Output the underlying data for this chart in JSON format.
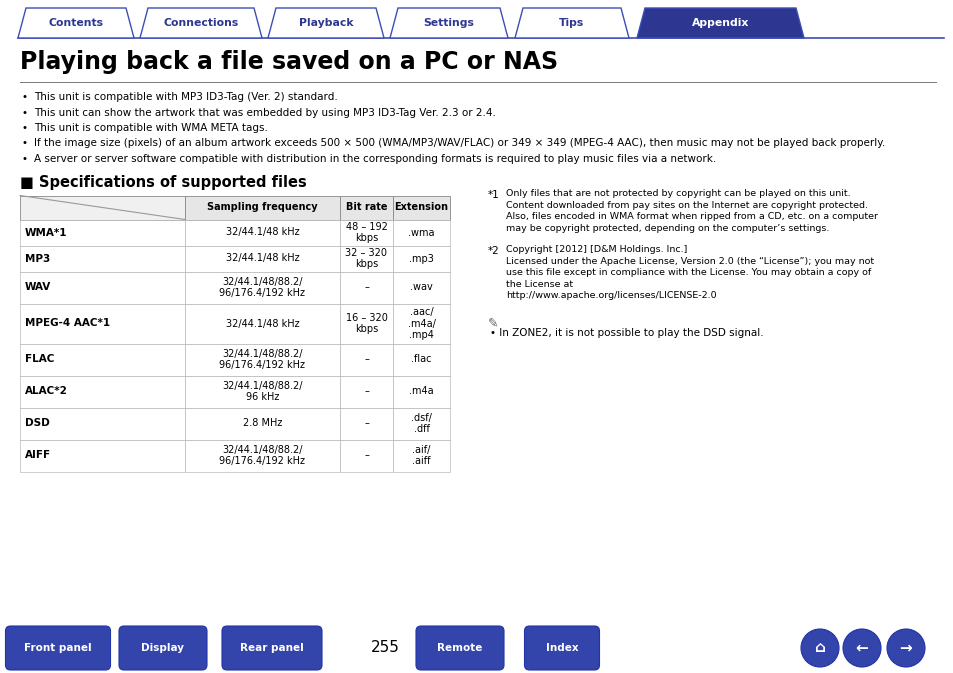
{
  "bg_color": "#ffffff",
  "title": "Playing back a file saved on a PC or NAS",
  "nav_tabs": [
    "Contents",
    "Connections",
    "Playback",
    "Settings",
    "Tips",
    "Appendix"
  ],
  "nav_active": 5,
  "nav_color_inactive": "#ffffff",
  "nav_color_active": "#2d3791",
  "nav_text_color_inactive": "#2d3791",
  "nav_text_color_active": "#ffffff",
  "nav_border_color": "#3d4db7",
  "bullets": [
    "This unit is compatible with MP3 ID3-Tag (Ver. 2) standard.",
    "This unit can show the artwork that was embedded by using MP3 ID3-Tag Ver. 2.3 or 2.4.",
    "This unit is compatible with WMA META tags.",
    "If the image size (pixels) of an album artwork exceeds 500 × 500 (WMA/MP3/WAV/FLAC) or 349 × 349 (MPEG-4 AAC), then music may not be played back properly.",
    "A server or server software compatible with distribution in the corresponding formats is required to play music files via a network."
  ],
  "section_title": "■ Specifications of supported files",
  "table_headers": [
    "",
    "Sampling frequency",
    "Bit rate",
    "Extension"
  ],
  "table_rows": [
    [
      "WMA*1",
      "32/44.1/48 kHz",
      "48 – 192\nkbps",
      ".wma"
    ],
    [
      "MP3",
      "32/44.1/48 kHz",
      "32 – 320\nkbps",
      ".mp3"
    ],
    [
      "WAV",
      "32/44.1/48/88.2/\n96/176.4/192 kHz",
      "–",
      ".wav"
    ],
    [
      "MPEG-4 AAC*1",
      "32/44.1/48 kHz",
      "16 – 320\nkbps",
      ".aac/\n.m4a/\n.mp4"
    ],
    [
      "FLAC",
      "32/44.1/48/88.2/\n96/176.4/192 kHz",
      "–",
      ".flac"
    ],
    [
      "ALAC*2",
      "32/44.1/48/88.2/\n96 kHz",
      "–",
      ".m4a"
    ],
    [
      "DSD",
      "2.8 MHz",
      "–",
      ".dsf/\n.dff"
    ],
    [
      "AIFF",
      "32/44.1/48/88.2/\n96/176.4/192 kHz",
      "–",
      ".aif/\n.aiff"
    ]
  ],
  "footnote1_title": "*1   ",
  "footnote1_text": "Only files that are not protected by copyright can be played on this unit.\nContent downloaded from pay sites on the Internet are copyright protected.\nAlso, files encoded in WMA format when ripped from a CD, etc. on a computer\nmay be copyright protected, depending on the computer’s settings.",
  "footnote2_title": "*2   ",
  "footnote2_text": "Copyright [2012] [D&M Holdings. Inc.]\nLicensed under the Apache License, Version 2.0 (the “License”); you may not\nuse this file except in compliance with the License. You may obtain a copy of\nthe License at\nhttp://www.apache.org/licenses/LICENSE-2.0",
  "note_text": "• In ZONE2, it is not possible to play the DSD signal.",
  "bottom_buttons": [
    "Front panel",
    "Display",
    "Rear panel",
    "Remote",
    "Index"
  ],
  "page_number": "255",
  "button_color": "#3344aa",
  "button_text_color": "#ffffff",
  "tab_starts": [
    18,
    140,
    268,
    390,
    515,
    637
  ],
  "tab_widths": [
    116,
    122,
    116,
    118,
    114,
    167
  ]
}
